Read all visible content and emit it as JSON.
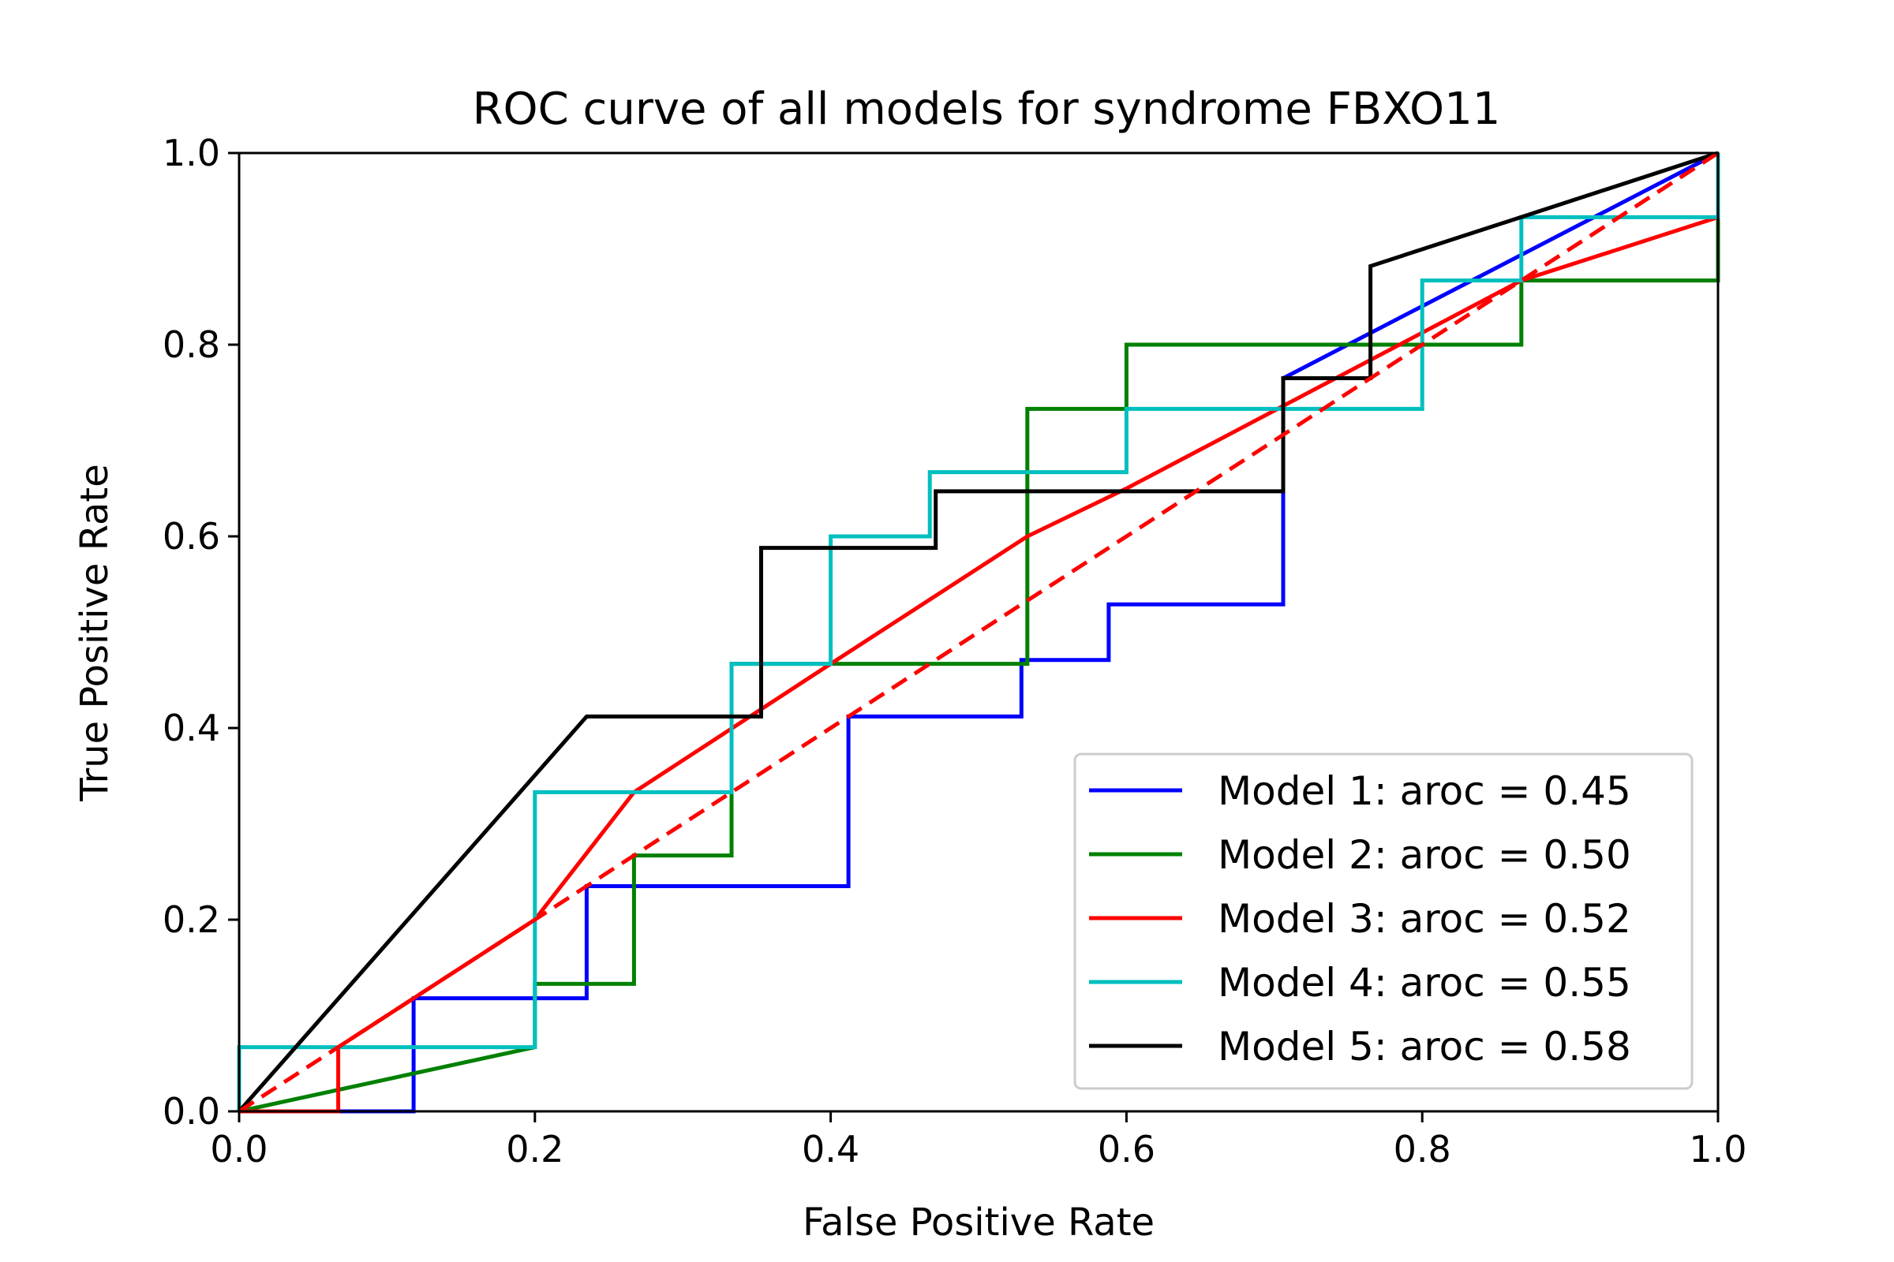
{
  "chart_data": {
    "type": "line",
    "title": "ROC curve of all models for syndrome FBXO11",
    "xlabel": "False Positive Rate",
    "ylabel": "True Positive Rate",
    "xlim": [
      0.0,
      1.0
    ],
    "ylim": [
      0.0,
      1.0
    ],
    "xticks": [
      "0.0",
      "0.2",
      "0.4",
      "0.6",
      "0.8",
      "1.0"
    ],
    "yticks": [
      "0.0",
      "0.2",
      "0.4",
      "0.6",
      "0.8",
      "1.0"
    ],
    "grid": false,
    "legend_position": "lower-right",
    "series": [
      {
        "name": "Model 1: aroc = 0.45",
        "color": "#0000ff",
        "points": [
          [
            0,
            0
          ],
          [
            0.118,
            0
          ],
          [
            0.118,
            0.118
          ],
          [
            0.235,
            0.118
          ],
          [
            0.235,
            0.235
          ],
          [
            0.412,
            0.235
          ],
          [
            0.412,
            0.412
          ],
          [
            0.529,
            0.412
          ],
          [
            0.529,
            0.471
          ],
          [
            0.588,
            0.471
          ],
          [
            0.588,
            0.529
          ],
          [
            0.706,
            0.529
          ],
          [
            0.706,
            0.647
          ],
          [
            0.706,
            0.765
          ],
          [
            1.0,
            1.0
          ]
        ]
      },
      {
        "name": "Model 2: aroc = 0.50",
        "color": "#008000",
        "points": [
          [
            0,
            0
          ],
          [
            0.2,
            0.067
          ],
          [
            0.2,
            0.133
          ],
          [
            0.267,
            0.133
          ],
          [
            0.267,
            0.267
          ],
          [
            0.333,
            0.267
          ],
          [
            0.333,
            0.467
          ],
          [
            0.533,
            0.467
          ],
          [
            0.533,
            0.667
          ],
          [
            0.533,
            0.733
          ],
          [
            0.6,
            0.733
          ],
          [
            0.6,
            0.8
          ],
          [
            0.867,
            0.8
          ],
          [
            0.867,
            0.867
          ],
          [
            1.0,
            0.867
          ],
          [
            1.0,
            1.0
          ]
        ]
      },
      {
        "name": "Model 3: aroc = 0.52",
        "color": "#ff0000",
        "points": [
          [
            0,
            0
          ],
          [
            0.067,
            0
          ],
          [
            0.067,
            0.067
          ],
          [
            0.12,
            0.12
          ],
          [
            0.2,
            0.2
          ],
          [
            0.267,
            0.333
          ],
          [
            0.4,
            0.467
          ],
          [
            0.533,
            0.6
          ],
          [
            0.6,
            0.65
          ],
          [
            0.867,
            0.867
          ],
          [
            1.0,
            0.933
          ],
          [
            1.0,
            1.0
          ]
        ]
      },
      {
        "name": "Model 4: aroc = 0.55",
        "color": "#00bfbf",
        "points": [
          [
            0,
            0
          ],
          [
            0,
            0.067
          ],
          [
            0.2,
            0.067
          ],
          [
            0.2,
            0.333
          ],
          [
            0.333,
            0.333
          ],
          [
            0.333,
            0.467
          ],
          [
            0.4,
            0.467
          ],
          [
            0.4,
            0.6
          ],
          [
            0.467,
            0.6
          ],
          [
            0.467,
            0.667
          ],
          [
            0.6,
            0.667
          ],
          [
            0.6,
            0.733
          ],
          [
            0.8,
            0.733
          ],
          [
            0.8,
            0.867
          ],
          [
            0.867,
            0.867
          ],
          [
            0.867,
            0.933
          ],
          [
            1.0,
            0.933
          ],
          [
            1.0,
            1.0
          ]
        ]
      },
      {
        "name": "Model 5: aroc = 0.58",
        "color": "#000000",
        "points": [
          [
            0,
            0
          ],
          [
            0.235,
            0.412
          ],
          [
            0.353,
            0.412
          ],
          [
            0.353,
            0.588
          ],
          [
            0.471,
            0.588
          ],
          [
            0.471,
            0.647
          ],
          [
            0.706,
            0.647
          ],
          [
            0.706,
            0.765
          ],
          [
            0.765,
            0.765
          ],
          [
            0.765,
            0.882
          ],
          [
            1.0,
            1.0
          ]
        ]
      }
    ],
    "reference_line": {
      "style": "dashed",
      "color": "#ff0000",
      "points": [
        [
          0,
          0
        ],
        [
          1,
          1
        ]
      ]
    }
  }
}
